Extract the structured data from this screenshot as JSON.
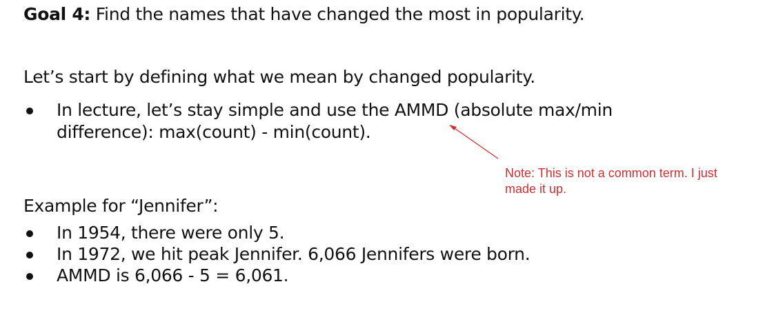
{
  "goal": {
    "label": "Goal 4:",
    "text": " Find the names that have changed the most in popularity."
  },
  "intro": "Let’s start by defining what we mean by changed popularity.",
  "definition_bullets": [
    "In lecture, let’s stay simple and use the AMMD (absolute max/min difference): max(count) - min(count)."
  ],
  "note": "Note: This is not a common term. I just made it up.",
  "example_heading": "Example for “Jennifer”:",
  "example_bullets": [
    "In 1954, there were only 5.",
    "In 1972, we hit peak Jennifer. 6,066 Jennifers were born.",
    "AMMD is 6,066 - 5 = 6,061."
  ],
  "colors": {
    "text": "#111111",
    "note": "#cc2f2f"
  }
}
